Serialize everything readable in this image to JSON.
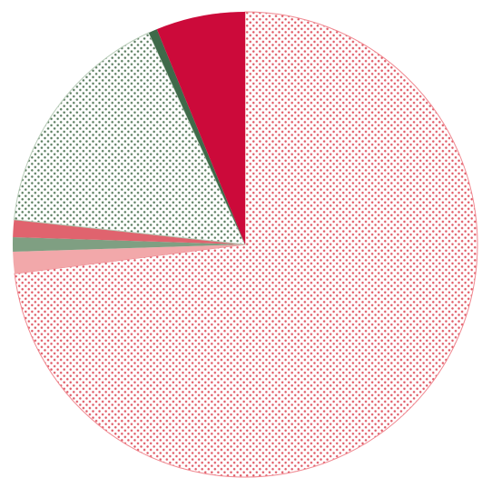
{
  "chart_data": {
    "type": "pie",
    "title": "",
    "start_angle_deg": 0,
    "direction": "clockwise",
    "slices": [
      {
        "value": 73.0,
        "color": "#e8747c",
        "pattern": "dots-red"
      },
      {
        "value": 1.5,
        "color": "#f2a8aa",
        "pattern": "solid"
      },
      {
        "value": 1.0,
        "color": "#7f9f82",
        "pattern": "solid"
      },
      {
        "value": 1.2,
        "color": "#e0636e",
        "pattern": "solid"
      },
      {
        "value": 16.5,
        "color": "#6f8f72",
        "pattern": "dots-green"
      },
      {
        "value": 0.6,
        "color": "#3f6a4a",
        "pattern": "solid"
      },
      {
        "value": 6.2,
        "color": "#cc0a3a",
        "pattern": "solid"
      }
    ]
  },
  "colors": {
    "background": "#ffffff",
    "red_dot": "#e05a66",
    "red_dot_bg": "#ffffff",
    "green_dot": "#5b7d60",
    "green_dot_bg": "#ffffff"
  }
}
